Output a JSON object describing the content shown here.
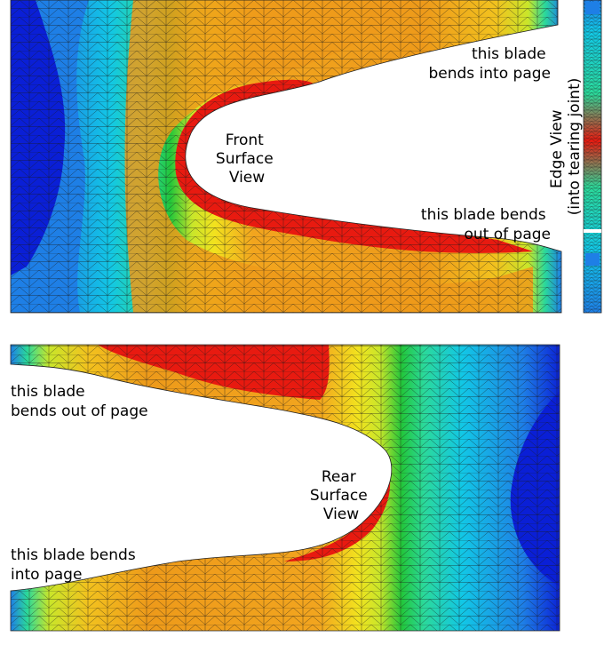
{
  "front_panel": {
    "title_lines": [
      "Front",
      "Surface",
      "View"
    ],
    "upper_blade_lines": [
      "this blade",
      "bends into page"
    ],
    "lower_blade_lines": [
      "this blade bends",
      "out of page"
    ]
  },
  "edge_panel": {
    "title_lines": [
      "Edge View",
      "(into tearing joint)"
    ]
  },
  "rear_panel": {
    "title_lines": [
      "Rear",
      "Surface",
      "View"
    ],
    "upper_blade_lines": [
      "this blade",
      "bends out of page"
    ],
    "lower_blade_lines": [
      "this blade bends",
      "into page"
    ]
  },
  "colormap": [
    "#0a1fd6",
    "#1e7fe6",
    "#12c7e6",
    "#2bd99a",
    "#22c63a",
    "#c9e62a",
    "#f2e21e",
    "#f2a51e",
    "#ee8e1a",
    "#e81a10"
  ]
}
